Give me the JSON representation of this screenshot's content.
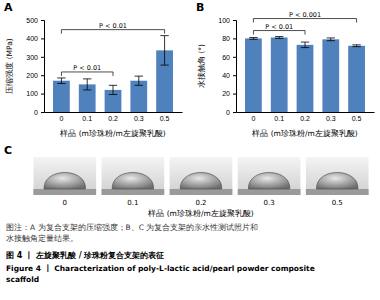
{
  "chart_data": [
    {
      "type": "bar",
      "title": "A",
      "x_label": "样品 (m珍珠粉/m左旋聚乳酸)",
      "y_label": "压缩强度 (MPa)",
      "categories": [
        "0",
        "0.1",
        "0.2",
        "0.3",
        "0.5"
      ],
      "values": [
        170,
        150,
        120,
        170,
        335
      ],
      "errors": [
        15,
        30,
        25,
        25,
        80
      ],
      "color": "#4f81bd",
      "ylim": [
        0,
        500
      ],
      "yticks": [
        0,
        100,
        200,
        300,
        400,
        500
      ],
      "annotations": [
        {
          "text": "P < 0.01",
          "between": [
            "0",
            "0.2"
          ]
        },
        {
          "text": "P < 0.01",
          "between": [
            "0",
            "0.5"
          ]
        }
      ]
    },
    {
      "type": "bar",
      "title": "B",
      "x_label": "样品 (m珍珠粉/m左旋聚乳酸)",
      "y_label": "水接触角 (°)",
      "categories": [
        "0",
        "0.1",
        "0.2",
        "0.3",
        "0.5"
      ],
      "values": [
        80,
        81,
        73,
        79,
        72
      ],
      "errors": [
        1,
        1,
        3,
        1.5,
        1
      ],
      "color": "#4f81bd",
      "ylim": [
        0,
        100
      ],
      "yticks": [
        0,
        20,
        40,
        60,
        80,
        100
      ],
      "annotations": [
        {
          "text": "P < 0.01",
          "between": [
            "0",
            "0.2"
          ]
        },
        {
          "text": "P < 0.001",
          "between": [
            "0",
            "0.5"
          ]
        }
      ]
    }
  ],
  "panel_c": {
    "title": "C",
    "categories": [
      "0",
      "0.1",
      "0.2",
      "0.3",
      "0.5"
    ],
    "x_label": "样品 (m珍珠粉/m左旋聚乳酸)"
  },
  "caption": {
    "note_lines": [
      "图注：A 为复合支架的压缩强度；B、C 为复合支架的亲水性测试照片和",
      "水接触角定量结果。"
    ],
    "figure_cn": "图 4 丨 左旋聚乳酸 / 珍珠粉复合支架的表征",
    "figure_en_lines": [
      "Figure 4 丨 Characterization of poly-L-lactic acid/pearl powder composite",
      "scaffold"
    ]
  }
}
